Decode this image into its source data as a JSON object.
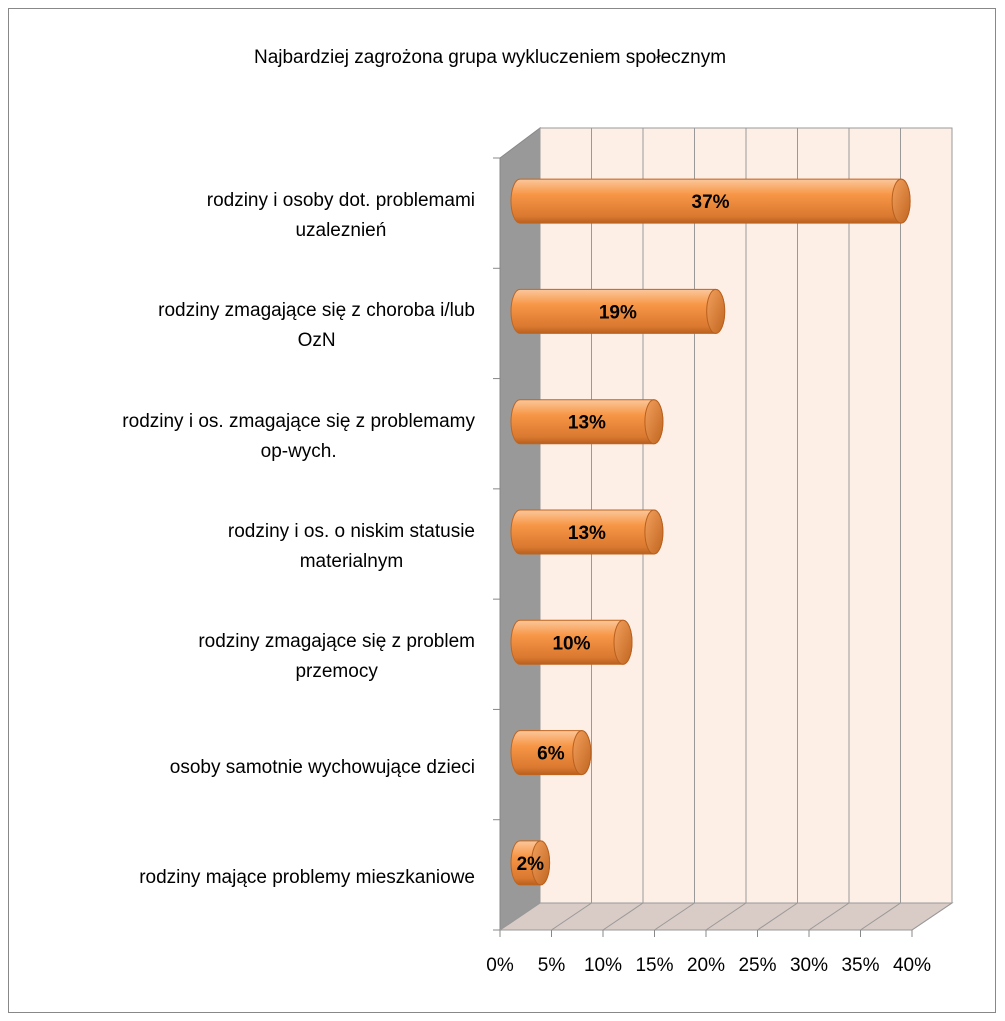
{
  "chart_data": {
    "type": "bar3d",
    "orientation": "horizontal",
    "title": "Najbardziej zagrożona grupa wykluczeniem społecznym",
    "categories": [
      "rodziny i osoby dot. problemami\nuzaleznień",
      "rodziny zmagające się z choroba i/lub\nOzN",
      "rodziny i os. zmagające się z problemamy\nop-wych.",
      "rodziny i os. o niskim statusie\nmaterialnym",
      "rodziny zmagające się z problem\nprzemocy",
      "osoby samotnie wychowujące dzieci",
      "rodziny mające problemy mieszkaniowe"
    ],
    "values": [
      37,
      19,
      13,
      13,
      10,
      6,
      2
    ],
    "value_labels": [
      "37%",
      "19%",
      "13%",
      "13%",
      "10%",
      "6%",
      "2%"
    ],
    "color": "#f79646",
    "xlim": [
      0,
      40
    ],
    "xticks": [
      {
        "value": 0,
        "label": "0%"
      },
      {
        "value": 5,
        "label": "5%"
      },
      {
        "value": 10,
        "label": "10%"
      },
      {
        "value": 15,
        "label": "15%"
      },
      {
        "value": 20,
        "label": "20%"
      },
      {
        "value": 25,
        "label": "25%"
      },
      {
        "value": 30,
        "label": "30%"
      },
      {
        "value": 35,
        "label": "35%"
      },
      {
        "value": 40,
        "label": "40%"
      }
    ],
    "grid": true
  }
}
